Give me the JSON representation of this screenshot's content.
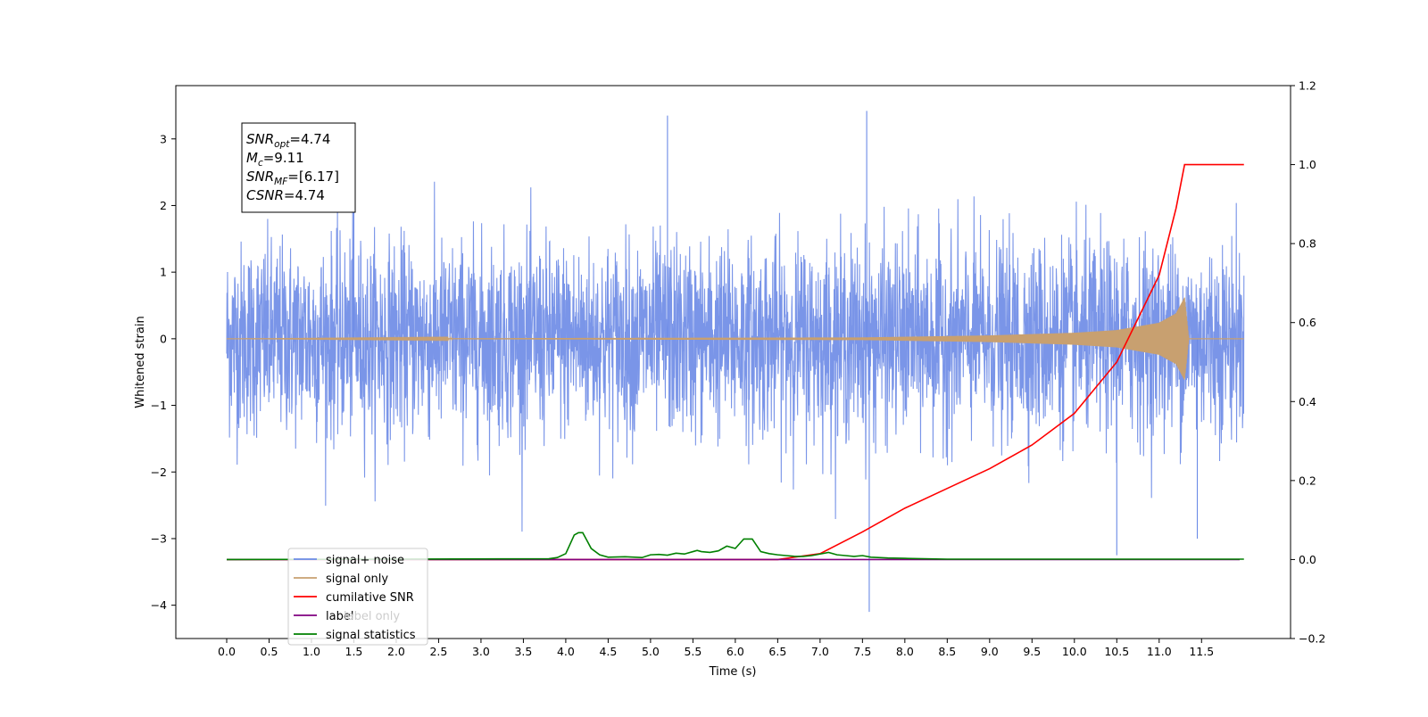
{
  "chart_data": {
    "type": "line",
    "xlabel": "Time (s)",
    "ylabel": "Whitened strain",
    "xlim": [
      -0.6,
      12.55
    ],
    "ylim": [
      -4.5,
      3.8
    ],
    "y2lim": [
      -0.2,
      1.2
    ],
    "x_ticks": [
      "0.0",
      "0.5",
      "1.0",
      "1.5",
      "2.0",
      "2.5",
      "3.0",
      "3.5",
      "4.0",
      "4.5",
      "5.0",
      "5.5",
      "6.0",
      "6.5",
      "7.0",
      "7.5",
      "8.0",
      "8.5",
      "9.0",
      "9.5",
      "10.0",
      "10.5",
      "11.0",
      "11.5"
    ],
    "y_ticks": [
      "3",
      "2",
      "1",
      "0",
      "−1",
      "−2",
      "−3",
      "−4"
    ],
    "y2_ticks": [
      "1.2",
      "1.0",
      "0.8",
      "0.6",
      "0.4",
      "0.2",
      "0.0",
      "−0.2"
    ],
    "grid": false,
    "legend_position": "lower-left",
    "annotation": {
      "lines": [
        {
          "base": "SNR",
          "sub": "opt",
          "value": "=4.74"
        },
        {
          "base": "M",
          "sub": "c",
          "value": "=9.11"
        },
        {
          "base": "SNR",
          "sub": "MF",
          "value": "=[6.17]"
        },
        {
          "base": "CSNR",
          "sub": "",
          "value": "=4.74"
        }
      ]
    },
    "series": [
      {
        "name": "signal+ noise",
        "color": "#6b8ae6",
        "axis": "left",
        "kind": "noise",
        "x_range": [
          0.0,
          12.0
        ],
        "typical_range": [
          -2.0,
          2.0
        ],
        "extreme_range": [
          -4.1,
          3.42
        ]
      },
      {
        "name": "signal only",
        "color": "#c8a070",
        "axis": "left",
        "kind": "chirp",
        "x_range": [
          0.0,
          12.0
        ],
        "envelope": [
          [
            0.0,
            0.0
          ],
          [
            7.5,
            0.02
          ],
          [
            9.0,
            0.05
          ],
          [
            10.0,
            0.09
          ],
          [
            10.5,
            0.13
          ],
          [
            11.0,
            0.24
          ],
          [
            11.2,
            0.38
          ],
          [
            11.3,
            0.62
          ],
          [
            11.35,
            0.0
          ]
        ]
      },
      {
        "name": "cumilative SNR",
        "color": "#ff0000",
        "axis": "right",
        "x": [
          0.0,
          6.5,
          7.0,
          7.5,
          8.0,
          8.5,
          9.0,
          9.5,
          10.0,
          10.5,
          11.0,
          11.2,
          11.3,
          11.31,
          12.0
        ],
        "y": [
          0.0,
          0.0,
          0.015,
          0.07,
          0.13,
          0.18,
          0.23,
          0.29,
          0.37,
          0.5,
          0.72,
          0.89,
          1.0,
          1.0,
          1.0
        ]
      },
      {
        "name": "label",
        "color": "#800080",
        "axis": "right",
        "x": [
          0.0,
          11.95
        ],
        "y": [
          0.0,
          0.0
        ]
      },
      {
        "name": "label only",
        "color": "#cccccc",
        "axis": "right",
        "x": [],
        "y": []
      },
      {
        "name": "signal statistics",
        "color": "#008000",
        "axis": "right",
        "x": [
          0.0,
          3.8,
          3.9,
          4.0,
          4.1,
          4.15,
          4.2,
          4.25,
          4.3,
          4.4,
          4.5,
          4.7,
          4.9,
          5.0,
          5.1,
          5.2,
          5.3,
          5.4,
          5.5,
          5.55,
          5.6,
          5.7,
          5.8,
          5.9,
          6.0,
          6.1,
          6.2,
          6.3,
          6.4,
          6.5,
          6.6,
          6.7,
          6.8,
          6.9,
          7.0,
          7.1,
          7.2,
          7.3,
          7.4,
          7.5,
          7.6,
          7.8,
          8.0,
          8.5,
          12.0
        ],
        "y": [
          0.0,
          0.002,
          0.005,
          0.015,
          0.062,
          0.068,
          0.068,
          0.048,
          0.028,
          0.012,
          0.006,
          0.007,
          0.005,
          0.012,
          0.013,
          0.011,
          0.016,
          0.014,
          0.02,
          0.023,
          0.02,
          0.018,
          0.022,
          0.034,
          0.028,
          0.052,
          0.052,
          0.02,
          0.015,
          0.012,
          0.01,
          0.008,
          0.008,
          0.01,
          0.014,
          0.018,
          0.012,
          0.01,
          0.008,
          0.01,
          0.006,
          0.004,
          0.003,
          0.001,
          0.001
        ]
      }
    ]
  }
}
